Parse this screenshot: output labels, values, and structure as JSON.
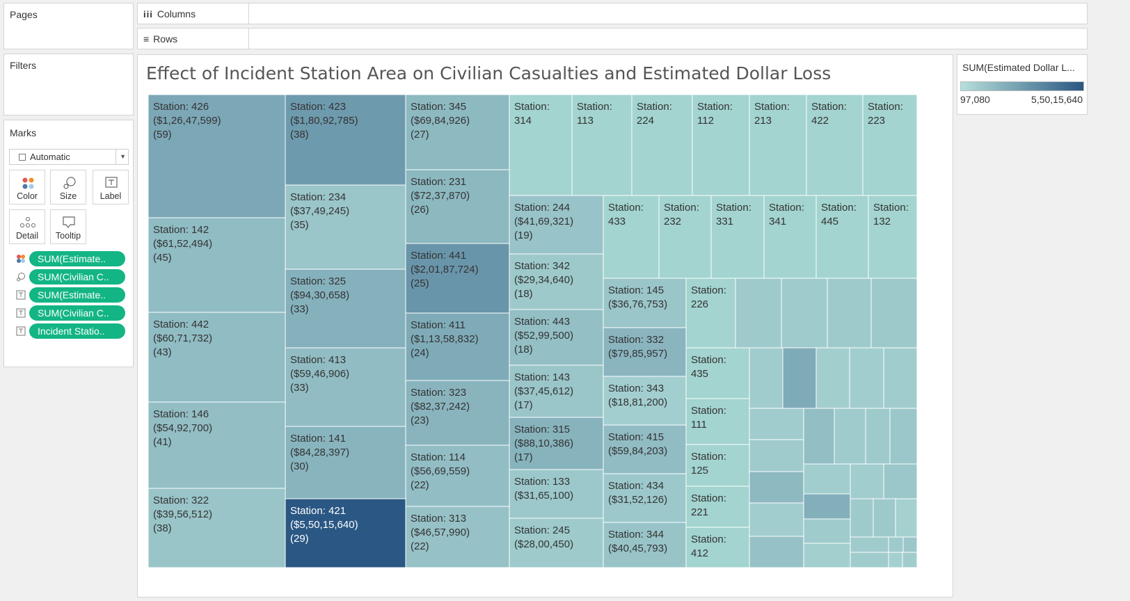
{
  "shelves": {
    "pages_label": "Pages",
    "columns_label": "Columns",
    "rows_label": "Rows",
    "filters_label": "Filters"
  },
  "marks": {
    "title": "Marks",
    "type_select": "Automatic",
    "buttons": [
      "Color",
      "Size",
      "Label",
      "Detail",
      "Tooltip"
    ],
    "pills": [
      {
        "icon": "color-dots-icon",
        "label": "SUM(Estimate.."
      },
      {
        "icon": "size-icon",
        "label": "SUM(Civilian C.."
      },
      {
        "icon": "label-icon",
        "label": "SUM(Estimate.."
      },
      {
        "icon": "label-icon",
        "label": "SUM(Civilian C.."
      },
      {
        "icon": "label-icon",
        "label": "Incident Statio.."
      }
    ]
  },
  "legend": {
    "title": "SUM(Estimated Dollar L...",
    "min_label": "97,080",
    "max_label": "5,50,15,640",
    "color_low": "#b5e0da",
    "color_high": "#2a5783"
  },
  "chart_data": {
    "type": "treemap",
    "title": "Effect of Incident Station Area on Civilian Casualties and Estimated Dollar Loss",
    "size_measure": "SUM(Civilian Casualties)",
    "color_measure": "SUM(Estimated Dollar Loss)",
    "items": [
      {
        "station": "Station: 426",
        "loss_label": "($1,26,47,599)",
        "casualties_label": "(59)",
        "loss": 12647599,
        "casualties": 59
      },
      {
        "station": "Station: 142",
        "loss_label": "($61,52,494)",
        "casualties_label": "(45)",
        "loss": 6152494,
        "casualties": 45
      },
      {
        "station": "Station: 442",
        "loss_label": "($60,71,732)",
        "casualties_label": "(43)",
        "loss": 6071732,
        "casualties": 43
      },
      {
        "station": "Station: 146",
        "loss_label": "($54,92,700)",
        "casualties_label": "(41)",
        "loss": 5492700,
        "casualties": 41
      },
      {
        "station": "Station: 322",
        "loss_label": "($39,56,512)",
        "casualties_label": "(38)",
        "loss": 3956512,
        "casualties": 38
      },
      {
        "station": "Station: 423",
        "loss_label": "($1,80,92,785)",
        "casualties_label": "(38)",
        "loss": 18092785,
        "casualties": 38
      },
      {
        "station": "Station: 234",
        "loss_label": "($37,49,245)",
        "casualties_label": "(35)",
        "loss": 3749245,
        "casualties": 35
      },
      {
        "station": "Station: 325",
        "loss_label": "($94,30,658)",
        "casualties_label": "(33)",
        "loss": 9430658,
        "casualties": 33
      },
      {
        "station": "Station: 413",
        "loss_label": "($59,46,906)",
        "casualties_label": "(33)",
        "loss": 5946906,
        "casualties": 33
      },
      {
        "station": "Station: 141",
        "loss_label": "($84,28,397)",
        "casualties_label": "(30)",
        "loss": 8428397,
        "casualties": 30
      },
      {
        "station": "Station: 421",
        "loss_label": "($5,50,15,640)",
        "casualties_label": "(29)",
        "loss": 55015640,
        "casualties": 29
      },
      {
        "station": "Station: 345",
        "loss_label": "($69,84,926)",
        "casualties_label": "(27)",
        "loss": 6984926,
        "casualties": 27
      },
      {
        "station": "Station: 231",
        "loss_label": "($72,37,870)",
        "casualties_label": "(26)",
        "loss": 7237870,
        "casualties": 26
      },
      {
        "station": "Station: 441",
        "loss_label": "($2,01,87,724)",
        "casualties_label": "(25)",
        "loss": 20187724,
        "casualties": 25
      },
      {
        "station": "Station: 411",
        "loss_label": "($1,13,58,832)",
        "casualties_label": "(24)",
        "loss": 11358832,
        "casualties": 24
      },
      {
        "station": "Station: 323",
        "loss_label": "($82,37,242)",
        "casualties_label": "(23)",
        "loss": 8237242,
        "casualties": 23
      },
      {
        "station": "Station: 114",
        "loss_label": "($56,69,559)",
        "casualties_label": "(22)",
        "loss": 5669559,
        "casualties": 22
      },
      {
        "station": "Station: 313",
        "loss_label": "($46,57,990)",
        "casualties_label": "(22)",
        "loss": 4657990,
        "casualties": 22
      },
      {
        "station": "Station:",
        "station_line2": "314",
        "loss": null
      },
      {
        "station": "Station:",
        "station_line2": "113",
        "loss": null
      },
      {
        "station": "Station:",
        "station_line2": "224",
        "loss": null
      },
      {
        "station": "Station:",
        "station_line2": "112",
        "loss": null
      },
      {
        "station": "Station:",
        "station_line2": "213",
        "loss": null
      },
      {
        "station": "Station:",
        "station_line2": "422",
        "loss": null
      },
      {
        "station": "Station:",
        "station_line2": "223",
        "loss": null
      },
      {
        "station": "Station: 244",
        "loss_label": "($41,69,321)",
        "casualties_label": "(19)",
        "loss": 4169321,
        "casualties": 19
      },
      {
        "station": "Station: 342",
        "loss_label": "($29,34,640)",
        "casualties_label": "(18)",
        "loss": 2934640,
        "casualties": 18
      },
      {
        "station": "Station: 443",
        "loss_label": "($52,99,500)",
        "casualties_label": "(18)",
        "loss": 5299500,
        "casualties": 18
      },
      {
        "station": "Station: 143",
        "loss_label": "($37,45,612)",
        "casualties_label": "(17)",
        "loss": 3745612,
        "casualties": 17
      },
      {
        "station": "Station: 315",
        "loss_label": "($88,10,386)",
        "casualties_label": "(17)",
        "loss": 8810386,
        "casualties": 17
      },
      {
        "station": "Station: 133",
        "loss_label": "($31,65,100)",
        "loss": 3165100
      },
      {
        "station": "Station: 245",
        "loss_label": "($28,00,450)",
        "loss": 2800450
      },
      {
        "station": "Station:",
        "station_line2": "433",
        "loss": null
      },
      {
        "station": "Station:",
        "station_line2": "232",
        "loss": null
      },
      {
        "station": "Station:",
        "station_line2": "331",
        "loss": null
      },
      {
        "station": "Station:",
        "station_line2": "341",
        "loss": null
      },
      {
        "station": "Station:",
        "station_line2": "445",
        "loss": null
      },
      {
        "station": "Station:",
        "station_line2": "132",
        "loss": null
      },
      {
        "station": "Station: 145",
        "loss_label": "($36,76,753)",
        "loss": 3676753
      },
      {
        "station": "Station: 332",
        "loss_label": "($79,85,957)",
        "loss": 7985957
      },
      {
        "station": "Station: 343",
        "loss_label": "($18,81,200)",
        "loss": 1881200
      },
      {
        "station": "Station: 415",
        "loss_label": "($59,84,203)",
        "loss": 5984203
      },
      {
        "station": "Station: 434",
        "loss_label": "($31,52,126)",
        "loss": 3152126
      },
      {
        "station": "Station: 344",
        "loss_label": "($40,45,793)",
        "loss": 4045793
      },
      {
        "station": "Station:",
        "station_line2": "226",
        "loss": null
      },
      {
        "station": "Station:",
        "station_line2": "435",
        "loss": null
      },
      {
        "station": "Station:",
        "station_line2": "111",
        "loss": null
      },
      {
        "station": "Station:",
        "station_line2": "125",
        "loss": null
      },
      {
        "station": "Station:",
        "station_line2": "221",
        "loss": null
      },
      {
        "station": "Station:",
        "station_line2": "412",
        "loss": null
      }
    ]
  }
}
